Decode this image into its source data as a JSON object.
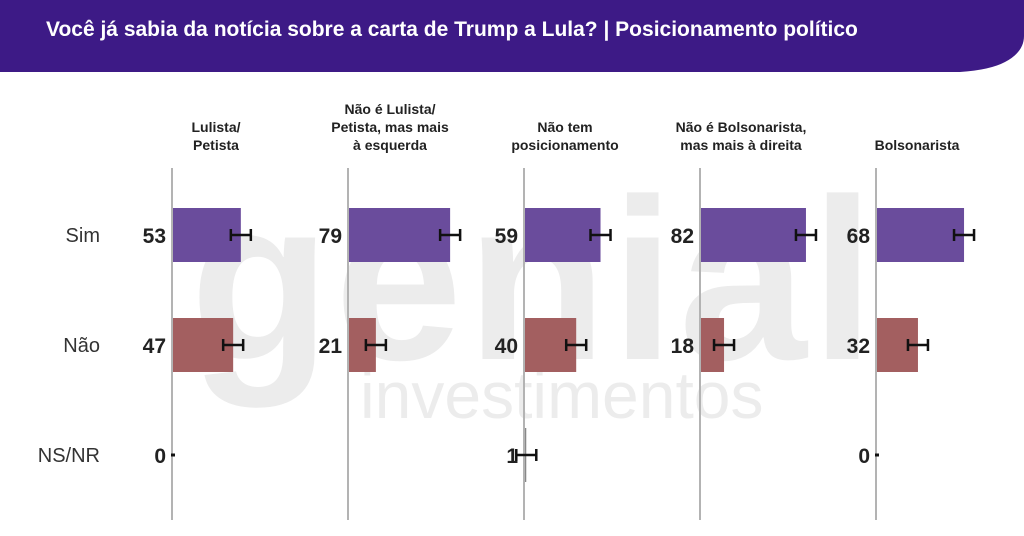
{
  "header": {
    "title": "Você já sabia da notícia sobre a carta de Trump a Lula? | Posicionamento político",
    "color": "#3d1a86"
  },
  "watermark": {
    "logo_text": "genial",
    "sub_text": "investimentos"
  },
  "chart_data": {
    "type": "bar",
    "orientation": "horizontal",
    "panels": [
      {
        "title": [
          "Lulista/",
          "Petista"
        ],
        "values": {
          "Sim": 53,
          "Não": 47,
          "NS/NR": 0
        }
      },
      {
        "title": [
          "Não é Lulista/",
          "Petista, mas mais",
          "à esquerda"
        ],
        "values": {
          "Sim": 79,
          "Não": 21
        }
      },
      {
        "title": [
          "Não tem",
          "posicionamento"
        ],
        "values": {
          "Sim": 59,
          "Não": 40,
          "NS/NR": 1
        }
      },
      {
        "title": [
          "Não é Bolsonarista,",
          "mas mais à direita"
        ],
        "values": {
          "Sim": 82,
          "Não": 18
        }
      },
      {
        "title": [
          "Bolsonarista"
        ],
        "values": {
          "Sim": 68,
          "Não": 32,
          "NS/NR": 0
        }
      }
    ],
    "categories": [
      "Sim",
      "Não",
      "NS/NR"
    ],
    "colors": {
      "Sim": "#6a4c9c",
      "Não": "#a35f60",
      "axis": "#b3b3b3"
    },
    "error_bars": true,
    "xlim": [
      0,
      100
    ],
    "grid": false,
    "legend": "none"
  }
}
